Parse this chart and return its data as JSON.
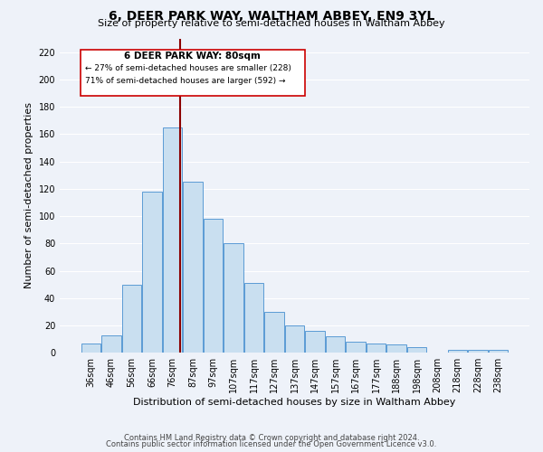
{
  "title": "6, DEER PARK WAY, WALTHAM ABBEY, EN9 3YL",
  "subtitle": "Size of property relative to semi-detached houses in Waltham Abbey",
  "xlabel": "Distribution of semi-detached houses by size in Waltham Abbey",
  "ylabel": "Number of semi-detached properties",
  "bar_labels": [
    "36sqm",
    "46sqm",
    "56sqm",
    "66sqm",
    "76sqm",
    "87sqm",
    "97sqm",
    "107sqm",
    "117sqm",
    "127sqm",
    "137sqm",
    "147sqm",
    "157sqm",
    "167sqm",
    "177sqm",
    "188sqm",
    "198sqm",
    "208sqm",
    "218sqm",
    "228sqm",
    "238sqm"
  ],
  "bar_values": [
    7,
    13,
    50,
    118,
    165,
    125,
    98,
    80,
    51,
    30,
    20,
    16,
    12,
    8,
    7,
    6,
    4,
    0,
    2,
    2,
    2
  ],
  "bar_color": "#c9dff0",
  "bar_edge_color": "#5b9bd5",
  "vline_color": "#8b0000",
  "property_label": "6 DEER PARK WAY: 80sqm",
  "smaller_pct": "27%",
  "smaller_count": 228,
  "larger_pct": "71%",
  "larger_count": 592,
  "annotation_box_edge": "#cc0000",
  "footer1": "Contains HM Land Registry data © Crown copyright and database right 2024.",
  "footer2": "Contains public sector information licensed under the Open Government Licence v3.0.",
  "ylim": [
    0,
    230
  ],
  "yticks": [
    0,
    20,
    40,
    60,
    80,
    100,
    120,
    140,
    160,
    180,
    200,
    220
  ],
  "background_color": "#eef2f9",
  "grid_color": "#ffffff",
  "title_fontsize": 10,
  "subtitle_fontsize": 8,
  "ylabel_fontsize": 8,
  "xlabel_fontsize": 8,
  "tick_fontsize": 7,
  "footer_fontsize": 6
}
